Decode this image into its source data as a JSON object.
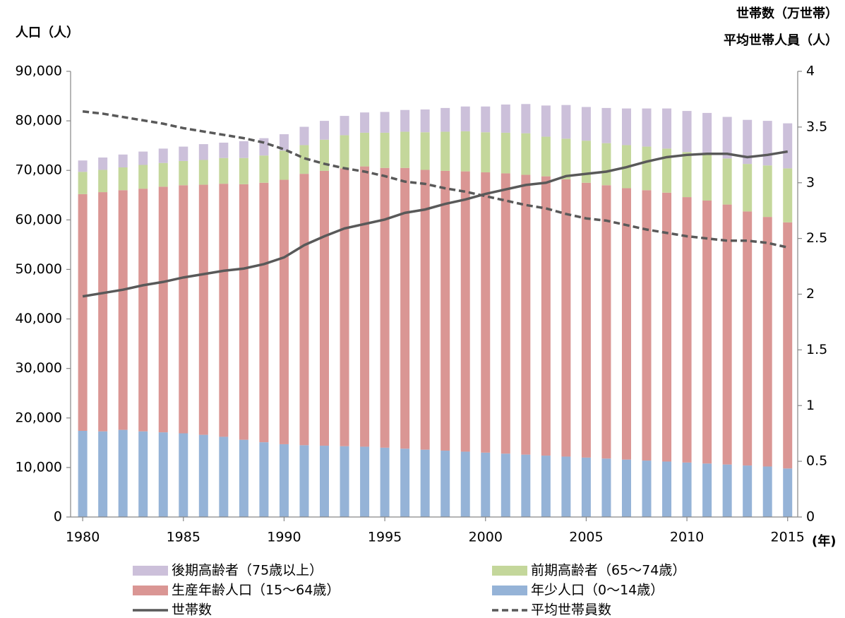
{
  "chart_data": {
    "type": "bar",
    "y_label": "人口（人）",
    "y2_label": [
      "世帯数（万世帯）",
      "平均世帯人員（人）"
    ],
    "x_label": "(年)",
    "x": [
      1980,
      1981,
      1982,
      1983,
      1984,
      1985,
      1986,
      1987,
      1988,
      1989,
      1990,
      1991,
      1992,
      1993,
      1994,
      1995,
      1996,
      1997,
      1998,
      1999,
      2000,
      2001,
      2002,
      2003,
      2004,
      2005,
      2006,
      2007,
      2008,
      2009,
      2010,
      2011,
      2012,
      2013,
      2014,
      2015
    ],
    "xlim": [
      1979.4,
      2015.5
    ],
    "xticks": [
      1980,
      1985,
      1990,
      1995,
      2000,
      2005,
      2010,
      2015
    ],
    "ylim": [
      0,
      90000
    ],
    "yticks": [
      0,
      {
        "value": 10000,
        "label": "10,000"
      },
      {
        "value": 20000,
        "label": "20,000"
      },
      {
        "value": 30000,
        "label": "30,000"
      },
      {
        "value": 40000,
        "label": "40,000"
      },
      {
        "value": 50000,
        "label": "50,000"
      },
      {
        "value": 60000,
        "label": "60,000"
      },
      {
        "value": 70000,
        "label": "70,000"
      },
      {
        "value": 80000,
        "label": "80,000"
      },
      {
        "value": 90000,
        "label": "90,000"
      }
    ],
    "y2lim": [
      0,
      4
    ],
    "y2ticks": [
      0,
      0.5,
      1,
      1.5,
      2,
      2.5,
      3,
      3.5,
      4
    ],
    "grid": false,
    "stacked": true,
    "legend": "bottom",
    "series": [
      {
        "name": "年少人口（0～14歳）",
        "type": "bar",
        "color": "#95b3d7",
        "values": [
          17400,
          17300,
          17600,
          17300,
          17100,
          16900,
          16600,
          16200,
          15600,
          15100,
          14700,
          14500,
          14400,
          14300,
          14200,
          14000,
          13800,
          13600,
          13400,
          13200,
          13000,
          12800,
          12600,
          12400,
          12200,
          12000,
          11800,
          11600,
          11400,
          11200,
          11000,
          10800,
          10600,
          10400,
          10200,
          9800
        ]
      },
      {
        "name": "生産年齢人口（15～64歳）",
        "type": "bar",
        "color": "#da9694",
        "values": [
          47800,
          48300,
          48400,
          49000,
          49600,
          50100,
          50500,
          51100,
          51600,
          52400,
          53400,
          54800,
          55500,
          56100,
          56600,
          56500,
          56700,
          56500,
          56500,
          56600,
          56600,
          56600,
          56500,
          56400,
          56000,
          55500,
          55200,
          54800,
          54600,
          54300,
          53600,
          53100,
          52500,
          51300,
          50400,
          49700
        ]
      },
      {
        "name": "前期高齢者（65～74歳）",
        "type": "bar",
        "color": "#c4d79b",
        "values": [
          4500,
          4500,
          4600,
          4800,
          4800,
          4900,
          5000,
          5200,
          5300,
          5500,
          5900,
          5800,
          6300,
          6700,
          6800,
          7100,
          7300,
          7600,
          7900,
          8100,
          8100,
          8200,
          8400,
          8000,
          8200,
          8500,
          8500,
          8700,
          8800,
          8900,
          9100,
          9500,
          9300,
          9600,
          10400,
          10900
        ]
      },
      {
        "name": "後期高齢者（75歳以上）",
        "type": "bar",
        "color": "#ccc0da",
        "values": [
          2300,
          2500,
          2600,
          2700,
          2900,
          2900,
          3200,
          3100,
          3400,
          3500,
          3300,
          3700,
          3800,
          3900,
          4100,
          4200,
          4400,
          4600,
          4800,
          5000,
          5200,
          5700,
          5900,
          6300,
          6800,
          6800,
          7100,
          7400,
          7700,
          8100,
          8300,
          8200,
          8400,
          8900,
          9000,
          9100
        ]
      },
      {
        "name": "世帯数",
        "type": "line",
        "axis": "y2",
        "color": "#595959",
        "dash": false,
        "values": [
          1.98,
          2.01,
          2.04,
          2.08,
          2.11,
          2.15,
          2.18,
          2.21,
          2.23,
          2.27,
          2.33,
          2.44,
          2.52,
          2.59,
          2.63,
          2.67,
          2.73,
          2.76,
          2.81,
          2.85,
          2.9,
          2.94,
          2.98,
          3.0,
          3.06,
          3.08,
          3.1,
          3.14,
          3.19,
          3.23,
          3.25,
          3.26,
          3.26,
          3.23,
          3.25,
          3.28
        ]
      },
      {
        "name": "平均世帯員数",
        "type": "line",
        "axis": "y2",
        "color": "#595959",
        "dash": true,
        "values": [
          3.64,
          3.62,
          3.59,
          3.56,
          3.53,
          3.49,
          3.46,
          3.43,
          3.4,
          3.36,
          3.3,
          3.22,
          3.17,
          3.13,
          3.1,
          3.06,
          3.01,
          2.99,
          2.95,
          2.92,
          2.88,
          2.84,
          2.8,
          2.77,
          2.72,
          2.68,
          2.66,
          2.62,
          2.58,
          2.55,
          2.52,
          2.5,
          2.48,
          2.48,
          2.46,
          2.42
        ]
      }
    ]
  }
}
